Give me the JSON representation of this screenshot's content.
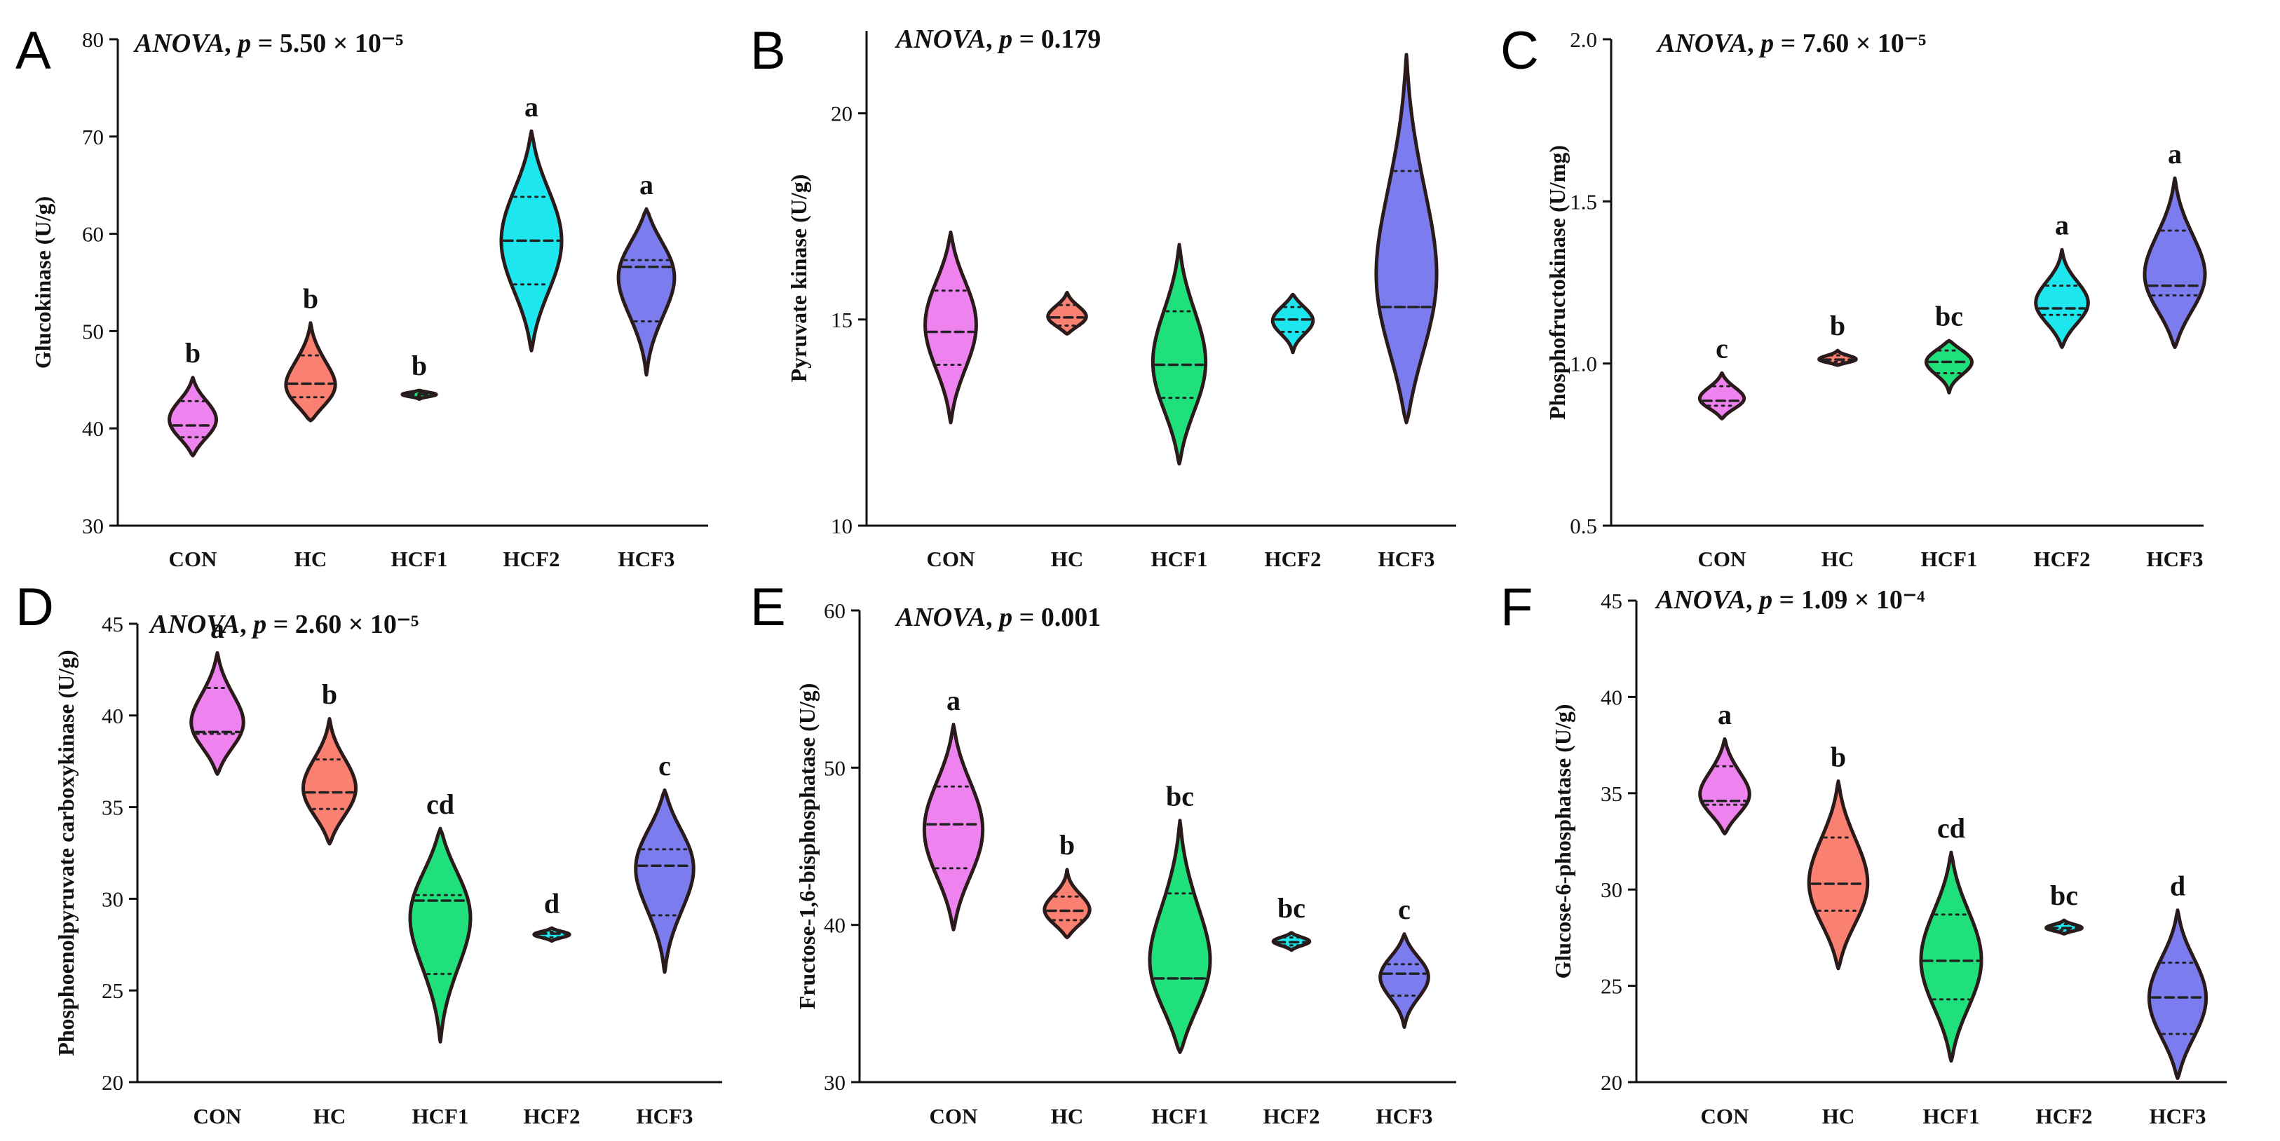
{
  "colors": {
    "CON": "#ee82ee",
    "HC": "#fa8072",
    "HCF1": "#1fe07a",
    "HCF2": "#1ee6ee",
    "HCF3": "#7b7cee",
    "outline": "#2a1a1a"
  },
  "chart_data": [
    {
      "type": "violin",
      "letter": "A",
      "anova_label": "ANOVA",
      "anova_p": "5.50 × 10⁻⁵",
      "ylabel": "Glucokinase (U/g)",
      "ylim": [
        30,
        80
      ],
      "yticks": [
        "30",
        "40",
        "50",
        "60",
        "70",
        "80"
      ],
      "categories": [
        "CON",
        "HC",
        "HCF1",
        "HCF2",
        "HCF3"
      ],
      "series": [
        {
          "name": "CON",
          "min": 37.2,
          "max": 45.2,
          "q1": 39.1,
          "median": 40.3,
          "q3": 42.8,
          "mode": 40.8,
          "letter": "b"
        },
        {
          "name": "HC",
          "min": 40.8,
          "max": 50.8,
          "q1": 43.2,
          "median": 44.6,
          "q3": 47.5,
          "mode": 44.0,
          "letter": "b"
        },
        {
          "name": "HCF1",
          "min": 43.0,
          "max": 43.9,
          "q1": 43.3,
          "median": 43.5,
          "q3": 43.7,
          "mode": 43.5,
          "letter": "b"
        },
        {
          "name": "HCF2",
          "min": 48.0,
          "max": 70.5,
          "q1": 54.8,
          "median": 59.3,
          "q3": 63.8,
          "mode": 59.3,
          "letter": "a"
        },
        {
          "name": "HCF3",
          "min": 45.5,
          "max": 62.5,
          "q1": 51.0,
          "median": 56.6,
          "q3": 57.3,
          "mode": 56.2,
          "letter": "a"
        }
      ]
    },
    {
      "type": "violin",
      "letter": "B",
      "anova_label": "ANOVA",
      "anova_p": "0.179",
      "ylabel": "Pyruvate kinase (U/g)",
      "ylim": [
        10,
        22
      ],
      "yticks": [
        "10",
        "15",
        "20"
      ],
      "categories": [
        "CON",
        "HC",
        "HCF1",
        "HCF2",
        "HCF3"
      ],
      "series": [
        {
          "name": "CON",
          "min": 12.5,
          "max": 17.1,
          "q1": 13.9,
          "median": 14.7,
          "q3": 15.7,
          "mode": 14.9,
          "letter": ""
        },
        {
          "name": "HC",
          "min": 14.65,
          "max": 15.65,
          "q1": 14.85,
          "median": 15.05,
          "q3": 15.35,
          "mode": 15.05,
          "letter": ""
        },
        {
          "name": "HCF1",
          "min": 11.5,
          "max": 16.8,
          "q1": 13.1,
          "median": 13.9,
          "q3": 15.2,
          "mode": 13.9,
          "letter": ""
        },
        {
          "name": "HCF2",
          "min": 14.2,
          "max": 15.6,
          "q1": 14.7,
          "median": 15.0,
          "q3": 15.3,
          "mode": 15.0,
          "letter": ""
        },
        {
          "name": "HCF3",
          "min": 12.5,
          "max": 21.4,
          "q1": 15.3,
          "median": 15.3,
          "q3": 18.6,
          "mode": 15.7,
          "letter": ""
        }
      ]
    },
    {
      "type": "violin",
      "letter": "C",
      "anova_label": "ANOVA",
      "anova_p": "7.60 × 10⁻⁵",
      "ylabel": "Phosphofructokinase (U/mg)",
      "ylim": [
        0.5,
        2.0
      ],
      "yticks": [
        "0.5",
        "1.0",
        "1.5",
        "2.0"
      ],
      "categories": [
        "CON",
        "HC",
        "HCF1",
        "HCF2",
        "HCF3"
      ],
      "series": [
        {
          "name": "CON",
          "min": 0.83,
          "max": 0.97,
          "q1": 0.87,
          "median": 0.885,
          "q3": 0.93,
          "mode": 0.89,
          "letter": "c"
        },
        {
          "name": "HC",
          "min": 0.995,
          "max": 1.04,
          "q1": 1.005,
          "median": 1.012,
          "q3": 1.025,
          "mode": 1.012,
          "letter": "b"
        },
        {
          "name": "HCF1",
          "min": 0.91,
          "max": 1.07,
          "q1": 0.97,
          "median": 1.005,
          "q3": 1.04,
          "mode": 1.01,
          "letter": "bc"
        },
        {
          "name": "HCF2",
          "min": 1.05,
          "max": 1.35,
          "q1": 1.15,
          "median": 1.17,
          "q3": 1.24,
          "mode": 1.18,
          "letter": "a"
        },
        {
          "name": "HCF3",
          "min": 1.05,
          "max": 1.57,
          "q1": 1.21,
          "median": 1.24,
          "q3": 1.41,
          "mode": 1.26,
          "letter": "a"
        }
      ]
    },
    {
      "type": "violin",
      "letter": "D",
      "anova_label": "ANOVA",
      "anova_p": "2.60 × 10⁻⁵",
      "ylabel": "Phosphoenolpyruvate carboxykinase (U/g)",
      "ylim": [
        20,
        45
      ],
      "yticks": [
        "20",
        "25",
        "30",
        "35",
        "40",
        "45"
      ],
      "categories": [
        "CON",
        "HC",
        "HCF1",
        "HCF2",
        "HCF3"
      ],
      "series": [
        {
          "name": "CON",
          "min": 36.8,
          "max": 43.4,
          "q1": 39.0,
          "median": 39.1,
          "q3": 41.5,
          "mode": 39.4,
          "letter": "a"
        },
        {
          "name": "HC",
          "min": 33.0,
          "max": 39.8,
          "q1": 34.9,
          "median": 35.8,
          "q3": 37.6,
          "mode": 35.9,
          "letter": "b"
        },
        {
          "name": "HCF1",
          "min": 22.2,
          "max": 33.8,
          "q1": 25.9,
          "median": 29.9,
          "q3": 30.2,
          "mode": 29.4,
          "letter": "cd"
        },
        {
          "name": "HCF2",
          "min": 27.7,
          "max": 28.4,
          "q1": 27.9,
          "median": 28.1,
          "q3": 28.2,
          "mode": 28.05,
          "letter": "d"
        },
        {
          "name": "HCF3",
          "min": 26.0,
          "max": 35.9,
          "q1": 29.1,
          "median": 31.8,
          "q3": 32.7,
          "mode": 32.0,
          "letter": "c"
        }
      ]
    },
    {
      "type": "violin",
      "letter": "E",
      "anova_label": "ANOVA",
      "anova_p": "0.001",
      "ylabel": "Fructose-1,6-bisphosphatase (U/g)",
      "ylim": [
        30,
        60
      ],
      "yticks": [
        "30",
        "40",
        "50",
        "60"
      ],
      "categories": [
        "CON",
        "HC",
        "HCF1",
        "HCF2",
        "HCF3"
      ],
      "series": [
        {
          "name": "CON",
          "min": 39.7,
          "max": 52.7,
          "q1": 43.6,
          "median": 46.4,
          "q3": 48.8,
          "mode": 46.0,
          "letter": "a"
        },
        {
          "name": "HC",
          "min": 39.2,
          "max": 43.5,
          "q1": 40.3,
          "median": 40.9,
          "q3": 41.8,
          "mode": 40.8,
          "letter": "b"
        },
        {
          "name": "HCF1",
          "min": 31.9,
          "max": 46.6,
          "q1": 36.6,
          "median": 36.6,
          "q3": 42.0,
          "mode": 37.0,
          "letter": "bc"
        },
        {
          "name": "HCF2",
          "min": 38.4,
          "max": 39.5,
          "q1": 38.7,
          "median": 38.9,
          "q3": 39.2,
          "mode": 38.95,
          "letter": "bc"
        },
        {
          "name": "HCF3",
          "min": 33.5,
          "max": 39.4,
          "q1": 35.5,
          "median": 36.9,
          "q3": 37.5,
          "mode": 36.8,
          "letter": "c"
        }
      ]
    },
    {
      "type": "violin",
      "letter": "F",
      "anova_label": "ANOVA",
      "anova_p": "1.09 × 10⁻⁴",
      "ylabel": "Glucose-6-phosphatase (U/g)",
      "ylim": [
        20,
        45
      ],
      "yticks": [
        "20",
        "25",
        "30",
        "35",
        "40",
        "45"
      ],
      "categories": [
        "CON",
        "HC",
        "HCF1",
        "HCF2",
        "HCF3"
      ],
      "series": [
        {
          "name": "CON",
          "min": 32.9,
          "max": 37.8,
          "q1": 34.4,
          "median": 34.6,
          "q3": 36.4,
          "mode": 34.8,
          "letter": "a"
        },
        {
          "name": "HC",
          "min": 25.9,
          "max": 35.6,
          "q1": 28.9,
          "median": 30.3,
          "q3": 32.7,
          "mode": 30.2,
          "letter": "b"
        },
        {
          "name": "HCF1",
          "min": 21.1,
          "max": 31.9,
          "q1": 24.3,
          "median": 26.3,
          "q3": 28.7,
          "mode": 26.3,
          "letter": "cd"
        },
        {
          "name": "HCF2",
          "min": 27.7,
          "max": 28.4,
          "q1": 27.9,
          "median": 28.0,
          "q3": 28.2,
          "mode": 28.0,
          "letter": "bc"
        },
        {
          "name": "HCF3",
          "min": 20.2,
          "max": 28.9,
          "q1": 22.5,
          "median": 24.4,
          "q3": 26.2,
          "mode": 24.3,
          "letter": "d"
        }
      ]
    }
  ]
}
